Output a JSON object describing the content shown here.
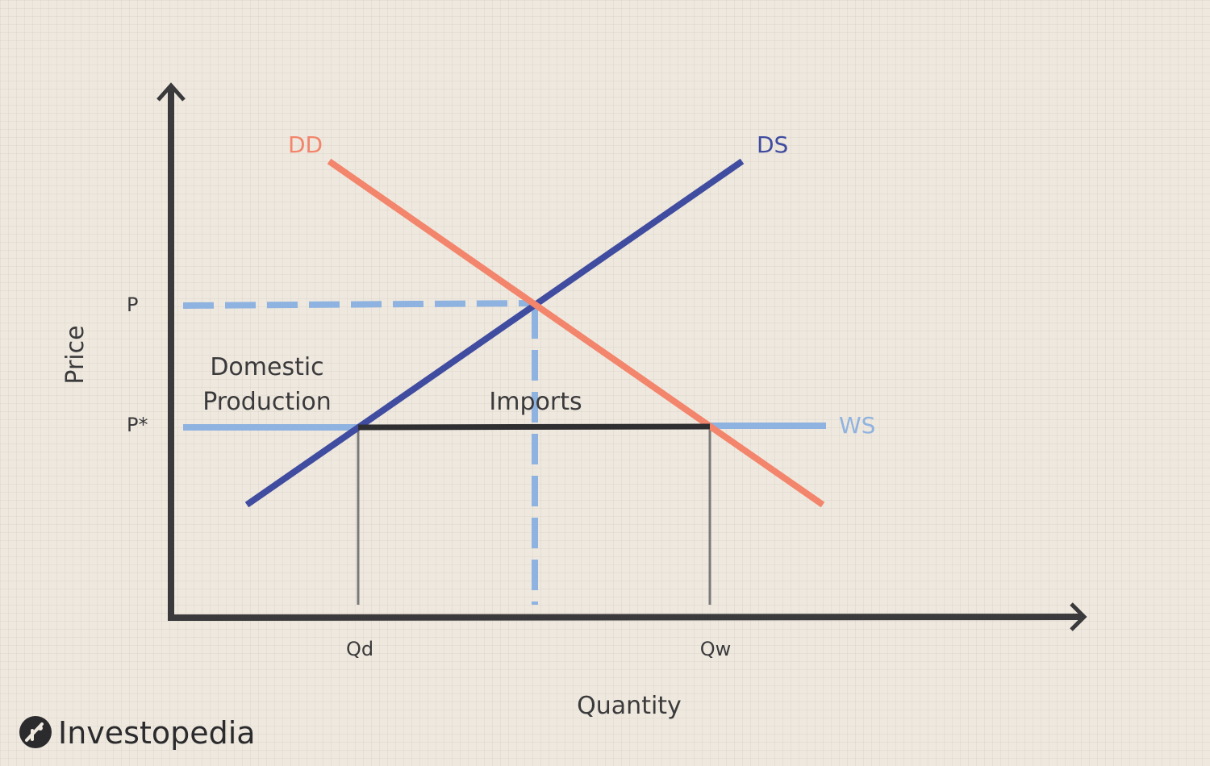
{
  "axes": {
    "x_label": "Quantity",
    "y_label": "Price"
  },
  "ticks": {
    "price_high": "P",
    "price_world": "P*",
    "qty_domestic": "Qd",
    "qty_world": "Qw"
  },
  "curves": {
    "demand": {
      "label": "DD",
      "color": "#f2856b"
    },
    "domestic_supply": {
      "label": "DS",
      "color": "#3f4ca0"
    },
    "world_supply": {
      "label": "WS",
      "color": "#8fb3e0"
    }
  },
  "regions": {
    "domestic_production_line1": "Domestic",
    "domestic_production_line2": "Production",
    "imports": "Imports"
  },
  "brand": {
    "name": "Investopedia",
    "color": "#2b2b2e"
  },
  "colors": {
    "axis": "#3a3a3c",
    "guide": "#8fb3e0",
    "bracket": "#2f2f31",
    "drop_line": "#7a7a7a",
    "background": "#efe8de"
  }
}
